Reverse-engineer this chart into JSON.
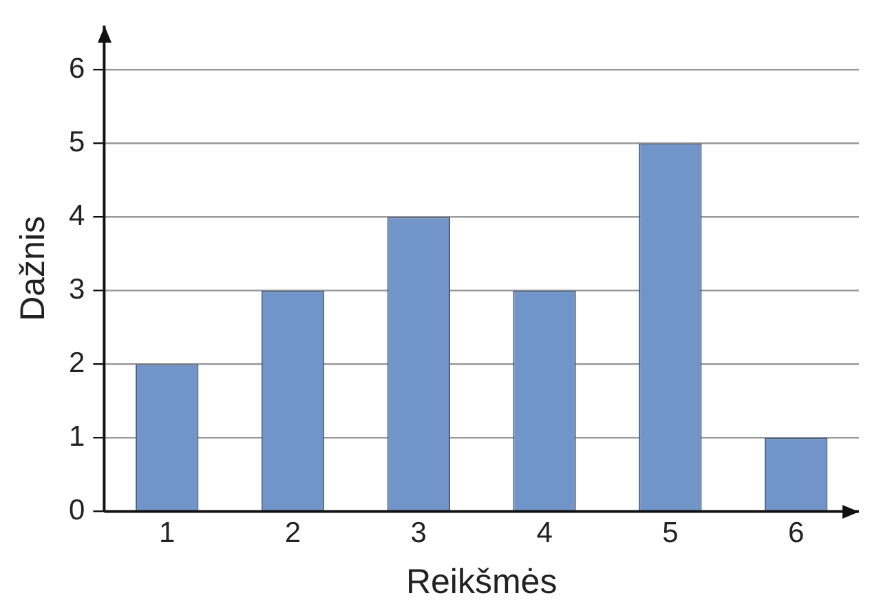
{
  "chart_data": {
    "type": "bar",
    "xlabel": "Reikšmės",
    "ylabel": "Dažnis",
    "categories": [
      "1",
      "2",
      "3",
      "4",
      "5",
      "6"
    ],
    "values": [
      2,
      3,
      4,
      3,
      5,
      1
    ],
    "color": "#7195c8",
    "ylim": [
      0,
      6.6
    ],
    "yticks": [
      0,
      1,
      2,
      3,
      4,
      5,
      6
    ],
    "grid": "y",
    "legend": false
  }
}
